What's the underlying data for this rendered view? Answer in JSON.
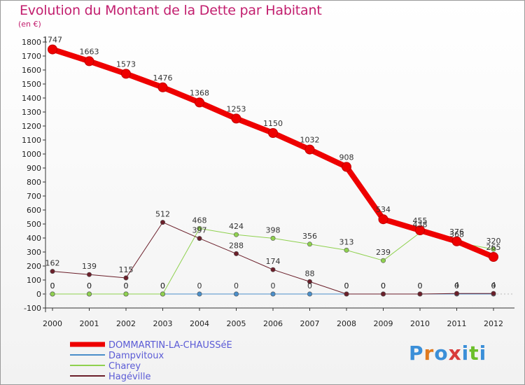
{
  "title": "Evolution du Montant de la Dette par Habitant",
  "subtitle": "(en €)",
  "logo": {
    "letters": [
      {
        "ch": "P",
        "color": "#3b8fd8"
      },
      {
        "ch": "r",
        "color": "#e07a1f"
      },
      {
        "ch": "o",
        "color": "#3b8fd8"
      },
      {
        "ch": "x",
        "color": "#d83b3b"
      },
      {
        "ch": "i",
        "color": "#3b8fd8"
      },
      {
        "ch": "t",
        "color": "#6cbf2a"
      },
      {
        "ch": "i",
        "color": "#3b8fd8"
      }
    ]
  },
  "chart_data": {
    "type": "line",
    "title": "Evolution du Montant de la Dette par Habitant",
    "ylabel": "(en €)",
    "x": [
      "2000",
      "2001",
      "2002",
      "2003",
      "2004",
      "2005",
      "2006",
      "2007",
      "2008",
      "2009",
      "2010",
      "2011",
      "2012"
    ],
    "ylim": [
      -100,
      1800
    ],
    "yticks": [
      -100,
      0,
      100,
      200,
      300,
      400,
      500,
      600,
      700,
      800,
      900,
      1000,
      1100,
      1200,
      1300,
      1400,
      1500,
      1600,
      1700,
      1800
    ],
    "grid": false,
    "legend_position": "bottom-left",
    "series": [
      {
        "name": "DOMMARTIN-LA-CHAUSSéE",
        "color": "#ee0000",
        "width": 8,
        "values": [
          1747,
          1663,
          1573,
          1476,
          1368,
          1253,
          1150,
          1032,
          908,
          534,
          455,
          376,
          265
        ],
        "labels": [
          "1747",
          "1663",
          "1573",
          "1476",
          "1368",
          "1253",
          "1150",
          "1032",
          "908",
          "534",
          "455",
          "376",
          "265"
        ]
      },
      {
        "name": "Dampvitoux",
        "color": "#4a8ec9",
        "width": 1,
        "values": [
          0,
          0,
          0,
          0,
          0,
          0,
          0,
          0,
          0,
          0,
          0,
          0,
          0
        ],
        "labels": [
          "0",
          "0",
          "0",
          "0",
          "0",
          "0",
          "0",
          "0",
          "0",
          "0",
          "0",
          "0",
          "0"
        ]
      },
      {
        "name": "Charey",
        "color": "#8fd14f",
        "width": 1,
        "values": [
          0,
          0,
          0,
          0,
          468,
          424,
          398,
          356,
          313,
          239,
          438,
          368,
          320
        ],
        "labels": [
          "0",
          "0",
          "0",
          "0",
          "468",
          "424",
          "398",
          "356",
          "313",
          "239",
          "438",
          "368",
          "320"
        ]
      },
      {
        "name": "Hagéville",
        "color": "#6b1f2a",
        "width": 1,
        "values": [
          162,
          139,
          115,
          512,
          397,
          288,
          174,
          88,
          0,
          0,
          0,
          4,
          4
        ],
        "labels": [
          "162",
          "139",
          "115",
          "512",
          "397",
          "288",
          "174",
          "88",
          "0",
          "0",
          "0",
          "4",
          "4"
        ]
      }
    ]
  }
}
